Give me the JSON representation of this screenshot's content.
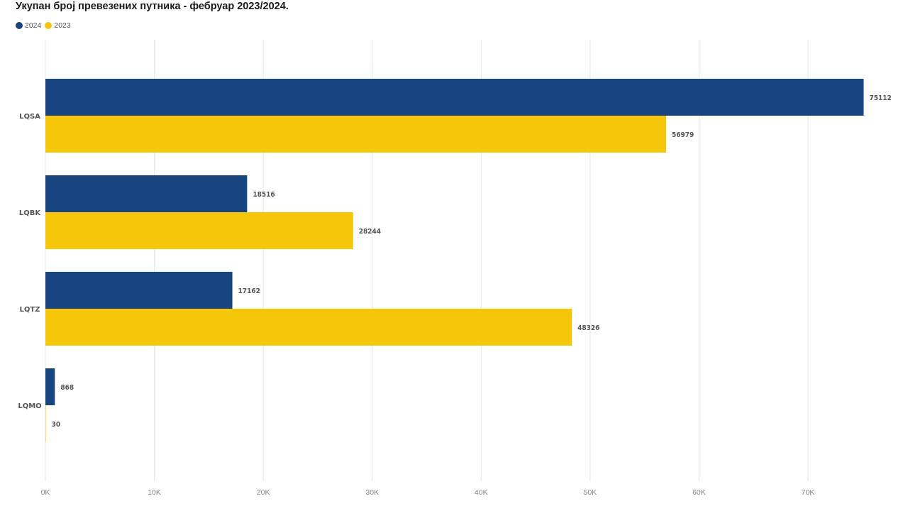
{
  "chart_data": {
    "type": "bar",
    "orientation": "horizontal",
    "title": "Укупан број превезених путника - фебруар 2023/2024.",
    "categories": [
      "LQSA",
      "LQBK",
      "LQTZ",
      "LQMO"
    ],
    "series": [
      {
        "name": "2024",
        "color": "#18457f",
        "values": [
          75112,
          18516,
          17162,
          868
        ]
      },
      {
        "name": "2023",
        "color": "#f5c609",
        "values": [
          56979,
          28244,
          48326,
          30
        ]
      }
    ],
    "xlim": [
      0,
      77000
    ],
    "x_ticks": [
      0,
      10000,
      20000,
      30000,
      40000,
      50000,
      60000,
      70000
    ],
    "x_tick_labels": [
      "0K",
      "10K",
      "20K",
      "30K",
      "40K",
      "50K",
      "60K",
      "70K"
    ],
    "grid": true,
    "legend_position": "top-left",
    "data_labels": true
  }
}
